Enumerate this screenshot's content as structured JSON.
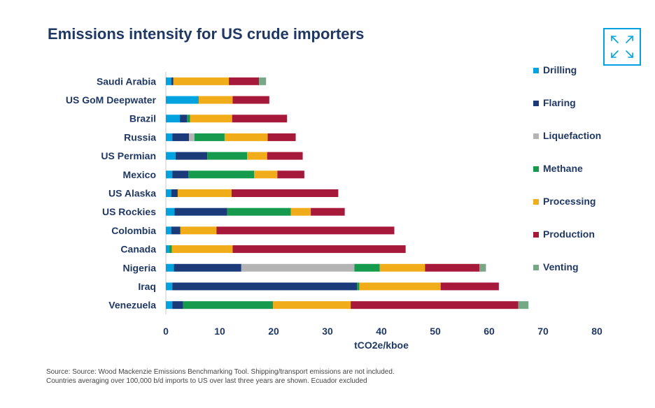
{
  "chart_data": {
    "type": "bar",
    "orientation": "horizontal",
    "stacked": true,
    "title": "Emissions intensity for US crude importers",
    "xlabel": "tCO2e/kboe",
    "xlim": [
      0,
      80
    ],
    "xticks": [
      0,
      10,
      20,
      30,
      40,
      50,
      60,
      70,
      80
    ],
    "grid": false,
    "legend_position": "right",
    "categories": [
      "Saudi Arabia",
      "US GoM Deepwater",
      "Brazil",
      "Russia",
      "US Permian",
      "Mexico",
      "US Alaska",
      "US Rockies",
      "Colombia",
      "Canada",
      "Nigeria",
      "Iraq",
      "Venezuela"
    ],
    "series": [
      {
        "name": "Drilling",
        "color": "#00a3e0",
        "values": [
          1.0,
          6.1,
          2.6,
          1.2,
          1.8,
          1.2,
          1.0,
          1.6,
          1.0,
          0.6,
          1.5,
          1.2,
          1.2
        ]
      },
      {
        "name": "Flaring",
        "color": "#1a3a7a",
        "values": [
          0.4,
          0.0,
          1.3,
          3.1,
          5.9,
          3.0,
          1.2,
          9.8,
          1.7,
          0.0,
          12.5,
          34.3,
          2.0
        ]
      },
      {
        "name": "Liquefaction",
        "color": "#b4b4b4",
        "values": [
          0,
          0,
          0,
          1.0,
          0,
          0,
          0,
          0,
          0,
          0,
          21.0,
          0,
          0
        ]
      },
      {
        "name": "Methane",
        "color": "#169b4e",
        "values": [
          0,
          0,
          0.6,
          5.6,
          7.4,
          12.2,
          0,
          11.8,
          0,
          0.5,
          4.7,
          0.4,
          16.7
        ]
      },
      {
        "name": "Processing",
        "color": "#f0ac19",
        "values": [
          10.3,
          6.3,
          7.8,
          8.0,
          3.7,
          4.3,
          10.0,
          3.7,
          6.7,
          11.3,
          8.4,
          15.1,
          14.4
        ]
      },
      {
        "name": "Production",
        "color": "#a7193a",
        "values": [
          5.6,
          6.8,
          10.2,
          5.2,
          6.6,
          5.0,
          19.8,
          6.3,
          33.0,
          32.1,
          10.1,
          10.8,
          31.1
        ]
      },
      {
        "name": "Venting",
        "color": "#76a886",
        "values": [
          1.3,
          0,
          0,
          0,
          0,
          0,
          0,
          0,
          0,
          0,
          1.2,
          0,
          1.9
        ]
      }
    ]
  },
  "source": {
    "line1": "Source: Source: Wood Mackenzie Emissions Benchmarking Tool. Shipping/transport emissions are not included.",
    "line2": "Countries averaging over 100,000 b/d imports to US over last three years are shown. Ecuador excluded"
  },
  "icons": {
    "expand": "expand-icon"
  }
}
